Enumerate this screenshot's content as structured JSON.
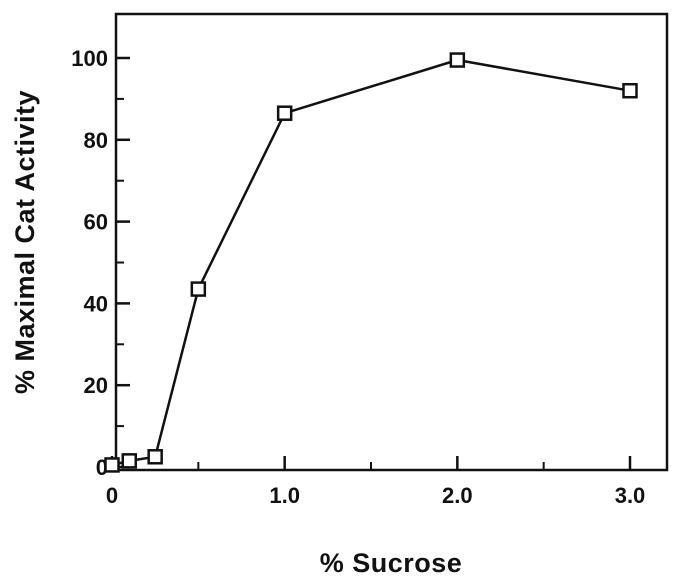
{
  "chart_data": {
    "type": "line",
    "title": "",
    "xlabel": "% Sucrose",
    "ylabel": "% Maximal Cat Activity",
    "xlim": [
      0,
      3.0
    ],
    "ylim": [
      0,
      100
    ],
    "xticks": [
      {
        "value": 0,
        "label": "0"
      },
      {
        "value": 1.0,
        "label": "1.0"
      },
      {
        "value": 2.0,
        "label": "2.0"
      },
      {
        "value": 3.0,
        "label": "3.0"
      }
    ],
    "xminor": [
      0.5,
      1.5,
      2.5
    ],
    "yticks": [
      {
        "value": 0,
        "label": "0"
      },
      {
        "value": 20,
        "label": "20"
      },
      {
        "value": 40,
        "label": "40"
      },
      {
        "value": 60,
        "label": "60"
      },
      {
        "value": 80,
        "label": "80"
      },
      {
        "value": 100,
        "label": "100"
      }
    ],
    "yminor": [
      10,
      30,
      50,
      70,
      90
    ],
    "grid": false,
    "marker": "open-square",
    "series": [
      {
        "x": [
          0,
          0.1,
          0.25,
          0.5,
          1.0,
          2.0,
          3.0
        ],
        "y": [
          0.5,
          1.5,
          2.5,
          43.5,
          86.5,
          99.5,
          92
        ]
      }
    ]
  }
}
